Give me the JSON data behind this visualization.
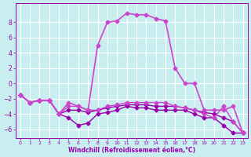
{
  "background_color": "#c8eef0",
  "grid_color": "#ffffff",
  "line_color": "#9900aa",
  "line_color2": "#cc44cc",
  "xlabel": "Windchill (Refroidissement éolien,°C)",
  "xlim": [
    -0.5,
    23.5
  ],
  "ylim": [
    -7.2,
    10.5
  ],
  "yticks": [
    -6,
    -4,
    -2,
    0,
    2,
    4,
    6,
    8
  ],
  "xticks": [
    0,
    1,
    2,
    3,
    4,
    5,
    6,
    7,
    8,
    9,
    10,
    11,
    12,
    13,
    14,
    15,
    16,
    17,
    18,
    19,
    20,
    21,
    22,
    23
  ],
  "s1_x": [
    0,
    1,
    2,
    3,
    4,
    5,
    6,
    7,
    8,
    9,
    10,
    11,
    12,
    13,
    14,
    15,
    16,
    17,
    18,
    19,
    20,
    21,
    22,
    23
  ],
  "s1_y": [
    -1.5,
    -2.5,
    -2.2,
    -2.2,
    -4.0,
    -4.5,
    -5.5,
    -5.2,
    -4.0,
    -3.8,
    -3.5,
    -3.0,
    -3.2,
    -3.2,
    -3.5,
    -3.5,
    -3.5,
    -3.5,
    -4.0,
    -4.5,
    -4.5,
    -5.5,
    -6.5,
    -6.5
  ],
  "s2_x": [
    0,
    1,
    2,
    3,
    4,
    5,
    6,
    7,
    8,
    9,
    10,
    11,
    12,
    13,
    14,
    15,
    16,
    17,
    18,
    19,
    20,
    21,
    22,
    23
  ],
  "s2_y": [
    -1.5,
    -2.5,
    -2.2,
    -2.2,
    -4.0,
    -3.5,
    -3.5,
    -3.8,
    -3.5,
    -3.2,
    -3.0,
    -2.8,
    -2.8,
    -2.8,
    -3.0,
    -3.0,
    -3.0,
    -3.2,
    -3.5,
    -3.8,
    -4.0,
    -4.5,
    -5.0,
    -6.5
  ],
  "s3_x": [
    0,
    1,
    2,
    3,
    4,
    5,
    6,
    7,
    8,
    9,
    10,
    11,
    12,
    13,
    14,
    15,
    16,
    17,
    18,
    19,
    20,
    21,
    22,
    23
  ],
  "s3_y": [
    -1.5,
    -2.5,
    -2.2,
    -2.2,
    -4.0,
    -3.0,
    -3.0,
    -3.5,
    -3.5,
    -3.0,
    -2.8,
    -2.5,
    -2.5,
    -2.5,
    -2.5,
    -2.5,
    -3.0,
    -3.2,
    -3.5,
    -4.0,
    -4.5,
    -3.0,
    -5.0,
    -6.5
  ],
  "s4_x": [
    0,
    1,
    2,
    3,
    4,
    5,
    6,
    7,
    8,
    9,
    10,
    11,
    12,
    13,
    14,
    15,
    16,
    17,
    18,
    19,
    20,
    21,
    22,
    23
  ],
  "s4_y": [
    -1.5,
    -2.5,
    -2.2,
    -2.2,
    -4.0,
    -2.5,
    -3.0,
    -3.5,
    5.0,
    8.0,
    8.2,
    9.2,
    9.0,
    9.0,
    8.5,
    8.2,
    2.0,
    0.0,
    0.0,
    -3.5,
    -3.5,
    -3.5,
    -3.0,
    -6.5
  ]
}
